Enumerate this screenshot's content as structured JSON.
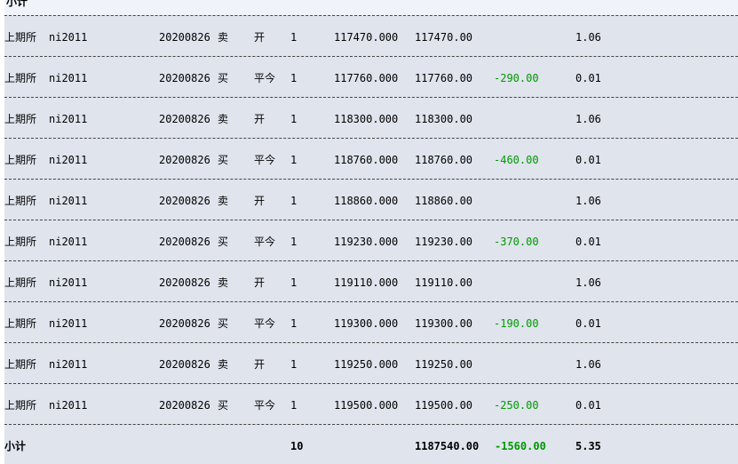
{
  "header": {
    "stub": "小计"
  },
  "trades": [
    {
      "exchange": "上期所",
      "contract": "ni2011",
      "date": "20200826",
      "direction": "卖",
      "open_close": "开",
      "qty": "1",
      "price": "117470.000",
      "amount": "117470.00",
      "pnl": "",
      "fee": "1.06"
    },
    {
      "exchange": "上期所",
      "contract": "ni2011",
      "date": "20200826",
      "direction": "买",
      "open_close": "平今",
      "qty": "1",
      "price": "117760.000",
      "amount": "117760.00",
      "pnl": "-290.00",
      "fee": "0.01"
    },
    {
      "exchange": "上期所",
      "contract": "ni2011",
      "date": "20200826",
      "direction": "卖",
      "open_close": "开",
      "qty": "1",
      "price": "118300.000",
      "amount": "118300.00",
      "pnl": "",
      "fee": "1.06"
    },
    {
      "exchange": "上期所",
      "contract": "ni2011",
      "date": "20200826",
      "direction": "买",
      "open_close": "平今",
      "qty": "1",
      "price": "118760.000",
      "amount": "118760.00",
      "pnl": "-460.00",
      "fee": "0.01"
    },
    {
      "exchange": "上期所",
      "contract": "ni2011",
      "date": "20200826",
      "direction": "卖",
      "open_close": "开",
      "qty": "1",
      "price": "118860.000",
      "amount": "118860.00",
      "pnl": "",
      "fee": "1.06"
    },
    {
      "exchange": "上期所",
      "contract": "ni2011",
      "date": "20200826",
      "direction": "买",
      "open_close": "平今",
      "qty": "1",
      "price": "119230.000",
      "amount": "119230.00",
      "pnl": "-370.00",
      "fee": "0.01"
    },
    {
      "exchange": "上期所",
      "contract": "ni2011",
      "date": "20200826",
      "direction": "卖",
      "open_close": "开",
      "qty": "1",
      "price": "119110.000",
      "amount": "119110.00",
      "pnl": "",
      "fee": "1.06"
    },
    {
      "exchange": "上期所",
      "contract": "ni2011",
      "date": "20200826",
      "direction": "买",
      "open_close": "平今",
      "qty": "1",
      "price": "119300.000",
      "amount": "119300.00",
      "pnl": "-190.00",
      "fee": "0.01"
    },
    {
      "exchange": "上期所",
      "contract": "ni2011",
      "date": "20200826",
      "direction": "卖",
      "open_close": "开",
      "qty": "1",
      "price": "119250.000",
      "amount": "119250.00",
      "pnl": "",
      "fee": "1.06"
    },
    {
      "exchange": "上期所",
      "contract": "ni2011",
      "date": "20200826",
      "direction": "买",
      "open_close": "平今",
      "qty": "1",
      "price": "119500.000",
      "amount": "119500.00",
      "pnl": "-250.00",
      "fee": "0.01"
    }
  ],
  "subtotal": {
    "label": "小计",
    "qty": "10",
    "amount": "1187540.00",
    "pnl": "-1560.00",
    "fee": "5.35"
  },
  "colors": {
    "row_bg": "#dfe4ed",
    "pnl_negative": "#009900",
    "top_band": "#f0f4fa"
  }
}
